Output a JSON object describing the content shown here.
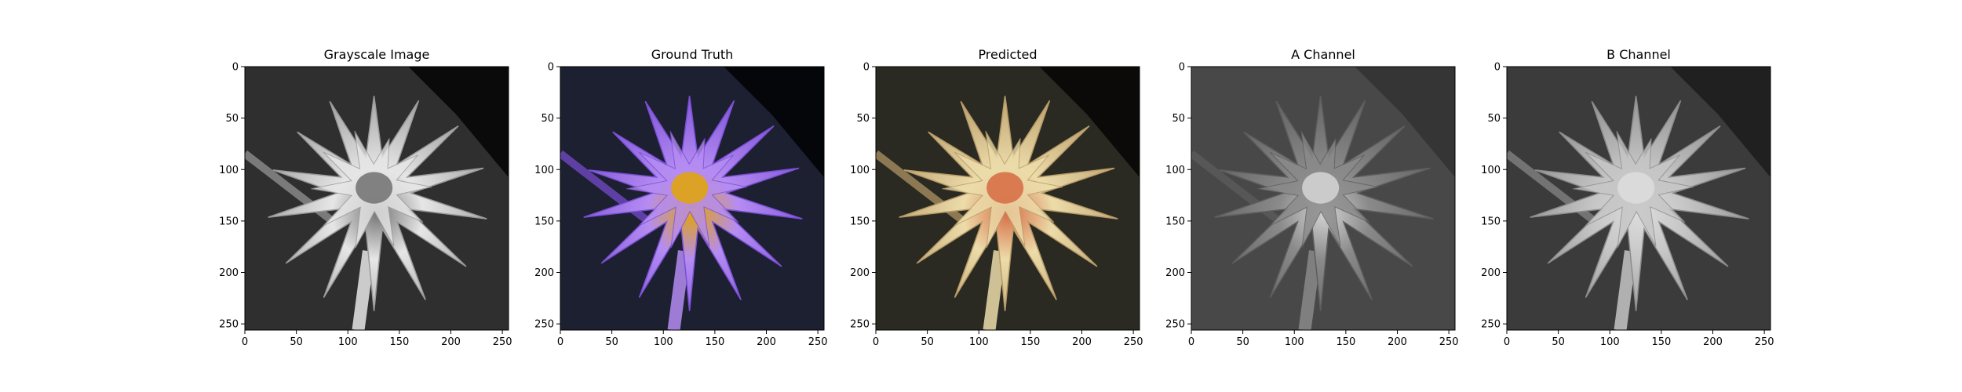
{
  "figure": {
    "background": "#ffffff"
  },
  "chart_data": [
    {
      "type": "image",
      "title": "Grayscale Image",
      "xlim": [
        0,
        256
      ],
      "ylim": [
        256,
        0
      ],
      "xticks": [
        0,
        50,
        100,
        150,
        200,
        250
      ],
      "yticks": [
        0,
        50,
        100,
        150,
        200,
        250
      ],
      "colormap": "gray",
      "image": {
        "background": "#2f2f2f",
        "petal_fill": "#e6e6e6",
        "petal_edge": "#9a9a9a",
        "center": "#777777",
        "dark_corner": "#0a0a0a"
      }
    },
    {
      "type": "image",
      "title": "Ground Truth",
      "xlim": [
        0,
        256
      ],
      "ylim": [
        256,
        0
      ],
      "xticks": [
        0,
        50,
        100,
        150,
        200,
        250
      ],
      "yticks": [
        0,
        50,
        100,
        150,
        200,
        250
      ],
      "colormap": "rgb",
      "image": {
        "background": "#1d2030",
        "petal_fill": "#b58cf2",
        "petal_edge": "#7a4fd6",
        "center": "#e0a412",
        "dark_corner": "#05060a"
      }
    },
    {
      "type": "image",
      "title": "Predicted",
      "xlim": [
        0,
        256
      ],
      "ylim": [
        256,
        0
      ],
      "xticks": [
        0,
        50,
        100,
        150,
        200,
        250
      ],
      "yticks": [
        0,
        50,
        100,
        150,
        200,
        250
      ],
      "colormap": "rgb",
      "image": {
        "background": "#2b2a22",
        "petal_fill": "#ecdcaa",
        "petal_edge": "#b79b68",
        "center": "#d77048",
        "dark_corner": "#0b0a08"
      }
    },
    {
      "type": "image",
      "title": "A Channel",
      "xlim": [
        0,
        256
      ],
      "ylim": [
        256,
        0
      ],
      "xticks": [
        0,
        50,
        100,
        150,
        200,
        250
      ],
      "yticks": [
        0,
        50,
        100,
        150,
        200,
        250
      ],
      "colormap": "gray",
      "image": {
        "background": "#484848",
        "petal_fill": "#8a8a8a",
        "petal_edge": "#5e5e5e",
        "center": "#d2d2d2",
        "dark_corner": "#353535"
      }
    },
    {
      "type": "image",
      "title": "B Channel",
      "xlim": [
        0,
        256
      ],
      "ylim": [
        256,
        0
      ],
      "xticks": [
        0,
        50,
        100,
        150,
        200,
        250
      ],
      "yticks": [
        0,
        50,
        100,
        150,
        200,
        250
      ],
      "colormap": "gray",
      "image": {
        "background": "#3b3b3b",
        "petal_fill": "#c6c6c6",
        "petal_edge": "#8c8c8c",
        "center": "#dcdcdc",
        "dark_corner": "#202020"
      }
    }
  ]
}
